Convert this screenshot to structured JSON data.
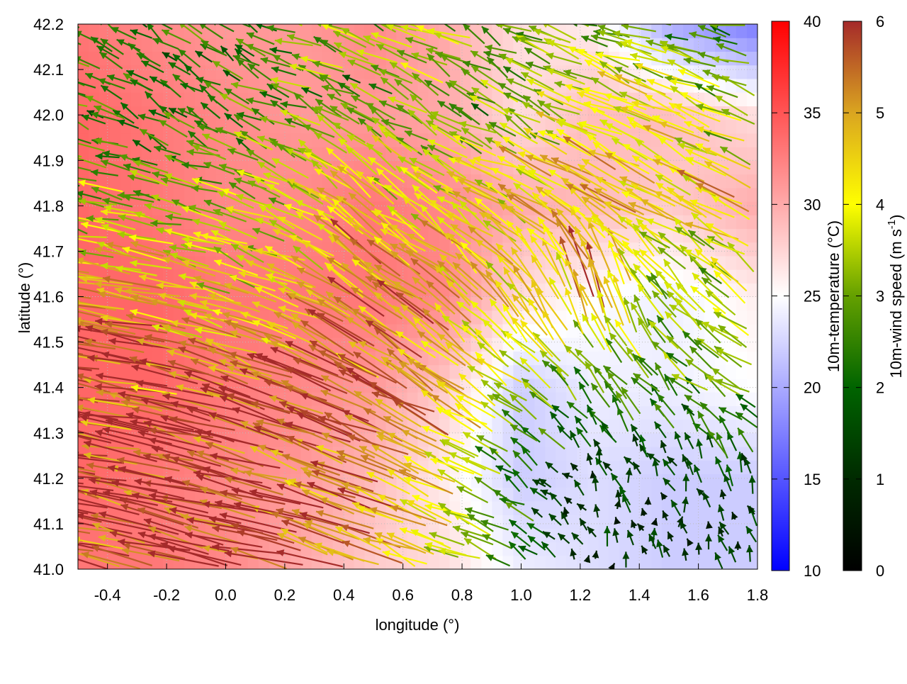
{
  "chart_data": {
    "type": "heatmap",
    "xlabel": "longitude (°)",
    "ylabel": "latitude (°)",
    "xlim": [
      -0.5,
      1.8
    ],
    "ylim": [
      41.0,
      42.2
    ],
    "xticks": [
      "-0.4",
      "-0.2",
      "0.0",
      "0.2",
      "0.4",
      "0.6",
      "0.8",
      "1.0",
      "1.2",
      "1.4",
      "1.6",
      "1.8"
    ],
    "xtick_values": [
      -0.4,
      -0.2,
      0.0,
      0.2,
      0.4,
      0.6,
      0.8,
      1.0,
      1.2,
      1.4,
      1.6,
      1.8
    ],
    "yticks": [
      "41.0",
      "41.1",
      "41.2",
      "41.3",
      "41.4",
      "41.5",
      "41.6",
      "41.7",
      "41.8",
      "41.9",
      "42.0",
      "42.1",
      "42.2"
    ],
    "ytick_values": [
      41.0,
      41.1,
      41.2,
      41.3,
      41.4,
      41.5,
      41.6,
      41.7,
      41.8,
      41.9,
      42.0,
      42.1,
      42.2
    ],
    "grid": true,
    "temperature": {
      "label": "10m-temperature (°C)",
      "range": [
        10,
        40
      ],
      "ticks": [
        "10",
        "15",
        "20",
        "25",
        "30",
        "35",
        "40"
      ],
      "tick_values": [
        10,
        15,
        20,
        25,
        30,
        35,
        40
      ],
      "colors": [
        "#0000ff",
        "#ffffff",
        "#ff0000"
      ],
      "lon": [
        -0.5,
        -0.25,
        0,
        0.25,
        0.5,
        0.75,
        1.0,
        1.25,
        1.5,
        1.8
      ],
      "lat": [
        41.0,
        41.2,
        41.4,
        41.6,
        41.8,
        42.0,
        42.2
      ],
      "values": [
        [
          33,
          33,
          32,
          30,
          28,
          27,
          24,
          23,
          22,
          22
        ],
        [
          34,
          33,
          32,
          31,
          29,
          26,
          22,
          23,
          22,
          22
        ],
        [
          34,
          34,
          33,
          32,
          31,
          28,
          22,
          24,
          24,
          25
        ],
        [
          34,
          34,
          33,
          33,
          33,
          32,
          27,
          25,
          24,
          26
        ],
        [
          34,
          33,
          32,
          32,
          33,
          32,
          30,
          29,
          28,
          30
        ],
        [
          34,
          33,
          32,
          31,
          31,
          30,
          27,
          29,
          29,
          27
        ],
        [
          33,
          32,
          31,
          31,
          32,
          30,
          27,
          26,
          20,
          17
        ]
      ]
    },
    "wind": {
      "label": "10m-wind speed (m s",
      "label_sup": "-1",
      "label_end": ")",
      "range": [
        0,
        6
      ],
      "ticks": [
        "0",
        "1",
        "2",
        "3",
        "4",
        "5",
        "6"
      ],
      "tick_values": [
        0,
        1,
        2,
        3,
        4,
        5,
        6
      ],
      "colors": [
        "#000000",
        "#002a00",
        "#006400",
        "#64a000",
        "#ffff00",
        "#daa520",
        "#a52a2a"
      ],
      "lon": [
        -0.5,
        -0.25,
        0,
        0.25,
        0.5,
        0.75,
        1.0,
        1.25,
        1.5,
        1.8
      ],
      "lat": [
        41.0,
        41.2,
        41.4,
        41.6,
        41.8,
        42.0,
        42.2
      ],
      "u": [
        [
          -6,
          -6,
          -6,
          -5.5,
          -5,
          -4,
          -2,
          0,
          0,
          -0.3
        ],
        [
          -6,
          -6,
          -6,
          -5.5,
          -5,
          -4,
          -2,
          -0.5,
          -0.5,
          -0.5
        ],
        [
          -5.5,
          -5.5,
          -5.5,
          -5,
          -5,
          -4,
          -3,
          -2,
          -2,
          -2.5
        ],
        [
          -5,
          -5,
          -4,
          -4,
          -4,
          -4,
          -2.5,
          -1.5,
          -2,
          -3
        ],
        [
          -3,
          -3,
          -3,
          -3,
          -3.5,
          -3,
          -4,
          -4,
          -4,
          -4
        ],
        [
          -2.5,
          -2,
          -2,
          -2.5,
          -2.5,
          -2.5,
          -2.5,
          -3.5,
          -3.5,
          -3
        ],
        [
          -2,
          -2,
          -2,
          -2.5,
          -3,
          -3,
          -2.5,
          -3,
          -3,
          -2
        ]
      ],
      "v": [
        [
          1.5,
          1.5,
          1.5,
          1.5,
          2,
          1.5,
          1,
          1,
          1,
          1
        ],
        [
          1,
          1,
          1.5,
          1.5,
          2,
          2,
          1,
          1,
          1.2,
          1.5
        ],
        [
          1,
          1,
          1.5,
          2,
          2.5,
          3,
          2,
          2.5,
          2,
          1.5
        ],
        [
          1,
          1,
          1,
          1.5,
          3,
          3,
          3.5,
          5,
          2.5,
          2
        ],
        [
          0.5,
          0.5,
          1,
          1.5,
          3,
          2,
          2,
          2.5,
          2,
          2
        ],
        [
          1,
          1,
          1,
          1,
          1.5,
          1.5,
          1.5,
          1.5,
          1.5,
          1.5
        ],
        [
          1,
          1.5,
          1.5,
          1,
          1,
          1,
          1,
          1,
          1,
          0.5
        ]
      ]
    }
  }
}
